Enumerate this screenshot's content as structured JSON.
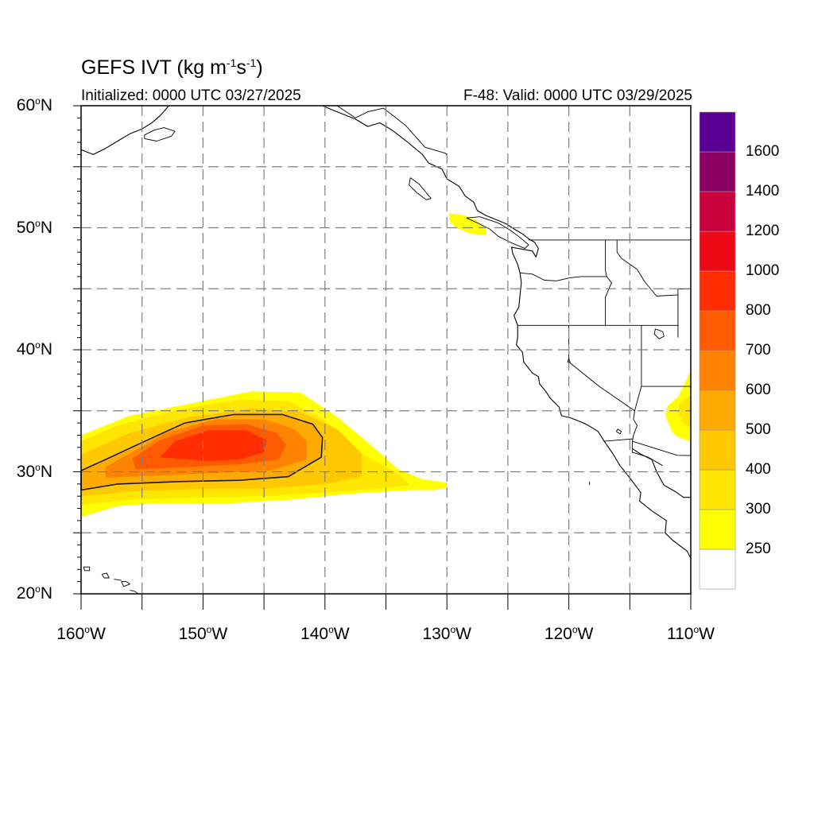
{
  "title": {
    "main": "GEFS IVT (kg m",
    "sup1": "-1",
    "mid": "s",
    "sup2": "-1",
    "end": ")"
  },
  "initialized": "Initialized: 0000 UTC 03/27/2025",
  "valid": "F-48: Valid: 0000 UTC 03/29/2025",
  "map": {
    "projection": "cylindrical-equidistant",
    "lon_range": [
      -160,
      -110
    ],
    "lat_range": [
      20,
      60
    ],
    "gridlines": "dashed",
    "grid_lon": [
      -155,
      -150,
      -145,
      -140,
      -135,
      -130,
      -125,
      -120,
      -115
    ],
    "grid_lat": [
      25,
      30,
      35,
      40,
      45,
      50,
      55
    ],
    "contour_line_value": 500,
    "features": [
      "coastlines",
      "us-state-borders",
      "canada-province-borders",
      "mexico-border"
    ]
  },
  "y_labels": [
    {
      "lat": 60,
      "num": "60",
      "deg": "o",
      "hemi": "N"
    },
    {
      "lat": 50,
      "num": "50",
      "deg": "o",
      "hemi": "N"
    },
    {
      "lat": 40,
      "num": "40",
      "deg": "o",
      "hemi": "N"
    },
    {
      "lat": 30,
      "num": "30",
      "deg": "o",
      "hemi": "N"
    },
    {
      "lat": 20,
      "num": "20",
      "deg": "o",
      "hemi": "N"
    }
  ],
  "x_labels": [
    {
      "lon": -160,
      "num": "160",
      "deg": "o",
      "hemi": "W"
    },
    {
      "lon": -150,
      "num": "150",
      "deg": "o",
      "hemi": "W"
    },
    {
      "lon": -140,
      "num": "140",
      "deg": "o",
      "hemi": "W"
    },
    {
      "lon": -130,
      "num": "130",
      "deg": "o",
      "hemi": "W"
    },
    {
      "lon": -120,
      "num": "120",
      "deg": "o",
      "hemi": "W"
    },
    {
      "lon": -110,
      "num": "110",
      "deg": "o",
      "hemi": "W"
    }
  ],
  "colorbar": {
    "levels": [
      250,
      300,
      400,
      500,
      600,
      700,
      800,
      1000,
      1200,
      1400,
      1600
    ],
    "labels": [
      "250",
      "300",
      "400",
      "500",
      "600",
      "700",
      "800",
      "1000",
      "1200",
      "1400",
      "1600"
    ],
    "colors": [
      "#ffffff",
      "#ffff00",
      "#ffe600",
      "#ffc800",
      "#ffaa00",
      "#ff8200",
      "#ff5a00",
      "#ff2d00",
      "#ee0a14",
      "#c8003c",
      "#8c0064",
      "#5a0096"
    ]
  },
  "ivt_regions": [
    {
      "level": 250,
      "shape": [
        [
          -160,
          26.3
        ],
        [
          -157,
          27.2
        ],
        [
          -154,
          27.4
        ],
        [
          -148,
          27.4
        ],
        [
          -143,
          27.7
        ],
        [
          -138,
          28.2
        ],
        [
          -133,
          28.5
        ],
        [
          -131,
          28.5
        ],
        [
          -130,
          28.7
        ],
        [
          -130,
          29.1
        ],
        [
          -132,
          29.4
        ],
        [
          -134,
          30.2
        ],
        [
          -136,
          32.0
        ],
        [
          -139,
          34.5
        ],
        [
          -142,
          36.5
        ],
        [
          -146,
          36.6
        ],
        [
          -151,
          35.6
        ],
        [
          -156,
          34.6
        ],
        [
          -160,
          33.0
        ]
      ]
    },
    {
      "level": 300,
      "shape": [
        [
          -160,
          27.3
        ],
        [
          -156,
          27.7
        ],
        [
          -150,
          27.9
        ],
        [
          -145,
          28.0
        ],
        [
          -140,
          28.3
        ],
        [
          -136,
          28.6
        ],
        [
          -133,
          28.9
        ],
        [
          -134,
          29.8
        ],
        [
          -137,
          31.5
        ],
        [
          -140,
          34.2
        ],
        [
          -143,
          35.8
        ],
        [
          -147,
          35.9
        ],
        [
          -152,
          35.1
        ],
        [
          -157,
          33.8
        ],
        [
          -160,
          32.5
        ]
      ]
    },
    {
      "level": 400,
      "shape": [
        [
          -160,
          28.0
        ],
        [
          -156,
          28.4
        ],
        [
          -150,
          28.6
        ],
        [
          -145,
          28.6
        ],
        [
          -140,
          29.0
        ],
        [
          -137,
          29.6
        ],
        [
          -137,
          31.5
        ],
        [
          -139,
          33.5
        ],
        [
          -142,
          34.9
        ],
        [
          -146,
          35.2
        ],
        [
          -151,
          34.5
        ],
        [
          -156,
          33.2
        ],
        [
          -160,
          31.4
        ]
      ]
    },
    {
      "level": 500,
      "shape": [
        [
          -160,
          28.5
        ],
        [
          -157,
          29.0
        ],
        [
          -152,
          29.2
        ],
        [
          -147,
          29.3
        ],
        [
          -143,
          29.6
        ],
        [
          -140.3,
          31.2
        ],
        [
          -140.2,
          32.8
        ],
        [
          -141,
          33.9
        ],
        [
          -143.5,
          34.7
        ],
        [
          -147.5,
          34.7
        ],
        [
          -151.5,
          34.0
        ],
        [
          -155,
          32.4
        ],
        [
          -158,
          31.0
        ],
        [
          -160,
          30.1
        ]
      ]
    },
    {
      "level": 600,
      "shape": [
        [
          -158,
          29.5
        ],
        [
          -154,
          29.7
        ],
        [
          -149,
          29.9
        ],
        [
          -144.5,
          30.1
        ],
        [
          -141.5,
          31.0
        ],
        [
          -141.5,
          32.5
        ],
        [
          -142.5,
          33.5
        ],
        [
          -145,
          34.3
        ],
        [
          -149,
          34.3
        ],
        [
          -153,
          33.2
        ],
        [
          -156,
          31.5
        ],
        [
          -158,
          30.4
        ]
      ]
    },
    {
      "level": 700,
      "shape": [
        [
          -155.5,
          30.2
        ],
        [
          -151,
          30.4
        ],
        [
          -147,
          30.6
        ],
        [
          -143.8,
          31.0
        ],
        [
          -143.2,
          32.2
        ],
        [
          -144,
          33.2
        ],
        [
          -146.5,
          33.9
        ],
        [
          -150,
          33.8
        ],
        [
          -153.5,
          32.6
        ],
        [
          -155.8,
          31.1
        ]
      ]
    },
    {
      "level": 800,
      "shape": [
        [
          -153.5,
          31.2
        ],
        [
          -150,
          30.9
        ],
        [
          -147,
          31.0
        ],
        [
          -145,
          31.6
        ],
        [
          -144.8,
          32.6
        ],
        [
          -146.5,
          33.4
        ],
        [
          -149.5,
          33.4
        ],
        [
          -152.3,
          32.5
        ]
      ]
    },
    {
      "level": 250,
      "shape": [
        [
          -129.8,
          51.2
        ],
        [
          -128.5,
          51.0
        ],
        [
          -127.5,
          50.6
        ],
        [
          -126.8,
          49.9
        ],
        [
          -126.8,
          49.4
        ],
        [
          -128,
          49.5
        ],
        [
          -129.3,
          50.0
        ],
        [
          -129.8,
          50.6
        ]
      ]
    },
    {
      "level": 250,
      "shape": [
        [
          -110,
          38.3
        ],
        [
          -111,
          36.2
        ],
        [
          -111.9,
          35.4
        ],
        [
          -112.1,
          34.6
        ],
        [
          -111.5,
          33.2
        ],
        [
          -111.0,
          32.8
        ],
        [
          -110,
          32.5
        ]
      ]
    },
    {
      "level": 300,
      "shape": [
        [
          -110,
          36.3
        ],
        [
          -110.9,
          35.6
        ],
        [
          -111.0,
          34.8
        ],
        [
          -110.6,
          34.0
        ],
        [
          -110,
          33.6
        ]
      ]
    }
  ],
  "contour_500": [
    [
      -160,
      28.5
    ],
    [
      -157,
      29.0
    ],
    [
      -152,
      29.2
    ],
    [
      -147,
      29.3
    ],
    [
      -143,
      29.6
    ],
    [
      -140.3,
      31.2
    ],
    [
      -140.2,
      32.8
    ],
    [
      -141,
      33.9
    ],
    [
      -143.5,
      34.7
    ],
    [
      -147.5,
      34.7
    ],
    [
      -151.5,
      34.0
    ],
    [
      -155,
      32.4
    ],
    [
      -158,
      31.0
    ],
    [
      -160,
      30.1
    ]
  ],
  "geo_lines": {
    "coast_na": [
      [
        -110,
        22.9
      ],
      [
        -110.3,
        23.5
      ],
      [
        -111.5,
        24.4
      ],
      [
        -112.1,
        25.0
      ],
      [
        -112.0,
        26.0
      ],
      [
        -113.2,
        26.8
      ],
      [
        -114.2,
        27.6
      ],
      [
        -114.1,
        28.3
      ],
      [
        -115.0,
        29.5
      ],
      [
        -115.8,
        30.5
      ],
      [
        -116.4,
        31.5
      ],
      [
        -117.1,
        32.5
      ],
      [
        -117.6,
        33.3
      ],
      [
        -118.4,
        33.8
      ],
      [
        -118.8,
        34.0
      ],
      [
        -119.8,
        34.4
      ],
      [
        -120.6,
        34.6
      ],
      [
        -120.8,
        35.3
      ],
      [
        -121.5,
        36.0
      ],
      [
        -121.9,
        36.6
      ],
      [
        -122.4,
        37.2
      ],
      [
        -122.5,
        37.8
      ],
      [
        -123.0,
        38.1
      ],
      [
        -123.7,
        39.0
      ],
      [
        -123.8,
        39.8
      ],
      [
        -124.3,
        40.4
      ],
      [
        -124.2,
        41.0
      ],
      [
        -124.2,
        42.0
      ],
      [
        -124.5,
        42.8
      ],
      [
        -124.1,
        43.5
      ],
      [
        -124.0,
        44.5
      ],
      [
        -123.9,
        45.5
      ],
      [
        -124.0,
        46.3
      ],
      [
        -124.2,
        47.0
      ],
      [
        -124.6,
        47.9
      ],
      [
        -124.7,
        48.4
      ],
      [
        -123.6,
        48.2
      ],
      [
        -123.0,
        48.1
      ],
      [
        -122.7,
        47.6
      ],
      [
        -122.5,
        48.3
      ],
      [
        -122.8,
        48.8
      ],
      [
        -123.3,
        49.1
      ],
      [
        -123.8,
        49.5
      ],
      [
        -124.5,
        49.9
      ],
      [
        -125.1,
        50.3
      ],
      [
        -125.8,
        50.6
      ],
      [
        -126.8,
        51.0
      ],
      [
        -127.5,
        51.4
      ],
      [
        -127.8,
        52.1
      ],
      [
        -128.5,
        52.6
      ],
      [
        -129.0,
        53.4
      ],
      [
        -130.0,
        54.0
      ],
      [
        -130.4,
        54.8
      ],
      [
        -131.5,
        55.3
      ],
      [
        -132.0,
        56.0
      ],
      [
        -133.2,
        57.0
      ],
      [
        -134.5,
        58.0
      ],
      [
        -135.5,
        58.6
      ],
      [
        -136.5,
        58.3
      ],
      [
        -137.5,
        58.9
      ],
      [
        -139.5,
        59.7
      ],
      [
        -140.2,
        60.0
      ]
    ],
    "coast_ak": [
      [
        -160,
        56.4
      ],
      [
        -159,
        56.0
      ],
      [
        -158,
        56.5
      ],
      [
        -157,
        57.1
      ],
      [
        -156,
        57.7
      ],
      [
        -155,
        58.1
      ],
      [
        -154.2,
        58.6
      ],
      [
        -153.5,
        59.2
      ],
      [
        -152.8,
        60.0
      ]
    ],
    "kodiak": [
      [
        -154.8,
        57.3
      ],
      [
        -153.8,
        57.1
      ],
      [
        -152.6,
        57.5
      ],
      [
        -152.3,
        57.9
      ],
      [
        -153.2,
        58.2
      ],
      [
        -154.0,
        58.0
      ],
      [
        -154.8,
        57.6
      ],
      [
        -154.8,
        57.3
      ]
    ],
    "vancouver_island": [
      [
        -128.4,
        50.8
      ],
      [
        -127.5,
        50.4
      ],
      [
        -126.5,
        49.9
      ],
      [
        -125.8,
        49.3
      ],
      [
        -124.8,
        48.8
      ],
      [
        -123.6,
        48.3
      ],
      [
        -123.3,
        48.6
      ],
      [
        -124.0,
        49.2
      ],
      [
        -124.8,
        49.8
      ],
      [
        -125.8,
        50.4
      ],
      [
        -127.3,
        50.9
      ],
      [
        -128.4,
        50.8
      ]
    ],
    "haida_gwaii": [
      [
        -133.0,
        54.1
      ],
      [
        -132.3,
        53.6
      ],
      [
        -131.8,
        53.0
      ],
      [
        -131.3,
        52.4
      ],
      [
        -131.7,
        52.3
      ],
      [
        -132.5,
        52.9
      ],
      [
        -133.1,
        53.5
      ],
      [
        -133.0,
        54.1
      ]
    ],
    "us_canada": [
      [
        -123.3,
        49.0
      ],
      [
        -110,
        49.0
      ]
    ],
    "wa_or": [
      [
        -124.0,
        46.3
      ],
      [
        -123.0,
        46.2
      ],
      [
        -122.0,
        45.7
      ],
      [
        -121.0,
        45.65
      ],
      [
        -119.9,
        45.9
      ],
      [
        -119.0,
        46.0
      ],
      [
        -116.9,
        46.0
      ]
    ],
    "or_ca_nv_id": [
      [
        -124.2,
        42.0
      ],
      [
        -117.0,
        42.0
      ],
      [
        -111.0,
        42.0
      ]
    ],
    "id_west": [
      [
        -117.0,
        49.0
      ],
      [
        -117.0,
        46.5
      ],
      [
        -116.9,
        46.0
      ],
      [
        -116.5,
        45.5
      ],
      [
        -117.0,
        44.3
      ],
      [
        -117.0,
        42.0
      ]
    ],
    "ca_nv": [
      [
        -120.0,
        42.0
      ],
      [
        -120.0,
        39.0
      ],
      [
        -117.5,
        37.0
      ],
      [
        -114.6,
        35.0
      ]
    ],
    "nv_az_ut": [
      [
        -114.05,
        42.0
      ],
      [
        -114.05,
        37.0
      ],
      [
        -114.3,
        36.1
      ],
      [
        -114.6,
        35.0
      ]
    ],
    "az_ut": [
      [
        -114.05,
        37.0
      ],
      [
        -110,
        37.0
      ]
    ],
    "mt_id": [
      [
        -116.05,
        49.0
      ],
      [
        -116.05,
        48.0
      ],
      [
        -115.7,
        47.5
      ],
      [
        -114.7,
        46.8
      ],
      [
        -114.4,
        46.6
      ],
      [
        -113.8,
        45.6
      ],
      [
        -112.8,
        44.4
      ],
      [
        -111.05,
        44.5
      ]
    ],
    "wy_west": [
      [
        -111.05,
        45.0
      ],
      [
        -111.05,
        41.0
      ]
    ],
    "wy_north": [
      [
        -111.05,
        45.0
      ],
      [
        -110,
        45.0
      ]
    ],
    "ca_az": [
      [
        -114.6,
        35.0
      ],
      [
        -114.7,
        34.3
      ],
      [
        -114.4,
        33.8
      ],
      [
        -114.7,
        33.0
      ],
      [
        -114.75,
        32.7
      ]
    ],
    "us_mexico": [
      [
        -117.1,
        32.5
      ],
      [
        -114.75,
        32.7
      ],
      [
        -114.8,
        32.5
      ],
      [
        -111.1,
        31.35
      ],
      [
        -110,
        31.33
      ]
    ],
    "mexico_int": [
      [
        -114.8,
        32.5
      ],
      [
        -114.8,
        31.6
      ],
      [
        -113.5,
        31.2
      ],
      [
        -112.3,
        30.5
      ]
    ],
    "ak_bc": [
      [
        -130.0,
        55.9
      ],
      [
        -130.1,
        56.1
      ],
      [
        -131.8,
        56.6
      ],
      [
        -133.4,
        58.4
      ],
      [
        -135.2,
        59.8
      ],
      [
        -136.5,
        59.5
      ],
      [
        -137.5,
        59.0
      ],
      [
        -139.0,
        60.0
      ]
    ],
    "coast_mx_main": [
      [
        -110,
        27.9
      ],
      [
        -110.6,
        27.9
      ],
      [
        -111.3,
        28.4
      ],
      [
        -112.2,
        28.9
      ],
      [
        -112.8,
        30.0
      ],
      [
        -113.2,
        31.0
      ],
      [
        -114.2,
        31.5
      ],
      [
        -114.8,
        31.9
      ]
    ],
    "great_salt_lake": [
      [
        -112.9,
        41.7
      ],
      [
        -112.3,
        41.5
      ],
      [
        -112.2,
        41.1
      ],
      [
        -112.6,
        40.9
      ],
      [
        -113.0,
        41.3
      ],
      [
        -112.9,
        41.7
      ]
    ],
    "salton": [
      [
        -116.0,
        33.5
      ],
      [
        -115.7,
        33.3
      ],
      [
        -115.8,
        33.1
      ],
      [
        -116.1,
        33.3
      ],
      [
        -116.0,
        33.5
      ]
    ],
    "tahoe": [
      [
        -120.0,
        39.3
      ],
      [
        -119.9,
        39.0
      ],
      [
        -120.1,
        39.0
      ],
      [
        -120.0,
        39.3
      ]
    ],
    "hawaii_big": [
      [
        -156.0,
        20.3
      ],
      [
        -155.6,
        20.2
      ],
      [
        -155.3,
        20.0
      ],
      [
        -155.0,
        20.0
      ]
    ],
    "maui": [
      [
        -156.7,
        21.0
      ],
      [
        -156.3,
        21.0
      ],
      [
        -156.0,
        20.8
      ],
      [
        -156.5,
        20.6
      ],
      [
        -156.7,
        21.0
      ]
    ],
    "molokai": [
      [
        -157.3,
        21.2
      ],
      [
        -156.7,
        21.1
      ]
    ],
    "oahu": [
      [
        -158.3,
        21.6
      ],
      [
        -157.9,
        21.7
      ],
      [
        -157.7,
        21.3
      ],
      [
        -158.1,
        21.3
      ],
      [
        -158.3,
        21.6
      ]
    ],
    "kauai": [
      [
        -159.8,
        22.2
      ],
      [
        -159.3,
        22.2
      ],
      [
        -159.3,
        21.9
      ],
      [
        -159.7,
        21.9
      ],
      [
        -159.8,
        22.2
      ]
    ],
    "guadalupe": [
      [
        -118.3,
        29.2
      ],
      [
        -118.3,
        28.9
      ]
    ]
  }
}
